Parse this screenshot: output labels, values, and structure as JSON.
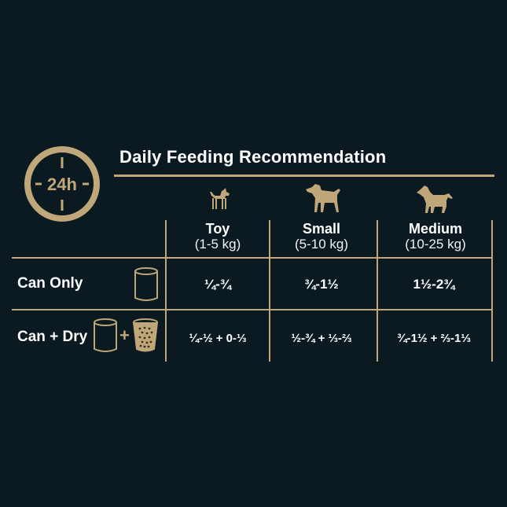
{
  "header": {
    "clock_text": "24h",
    "title": "Daily Feeding Recommendation"
  },
  "columns": [
    {
      "name": "Toy",
      "range": "(1-5 kg)",
      "icon": "toy-dog-icon"
    },
    {
      "name": "Small",
      "range": "(5-10 kg)",
      "icon": "small-dog-icon"
    },
    {
      "name": "Medium",
      "range": "(10-25 kg)",
      "icon": "medium-dog-icon"
    }
  ],
  "rows": [
    {
      "label": "Can Only",
      "icons": [
        "can-icon"
      ],
      "values": [
        "¼-¾",
        "¾-1½",
        "1½-2¾"
      ]
    },
    {
      "label": "Can + Dry",
      "icons": [
        "can-icon",
        "plus-icon",
        "dry-food-cup-icon"
      ],
      "plus": "+",
      "values": [
        "¼-½ + 0-⅓",
        "½-¾ + ⅓-⅔",
        "¾-1½ + ⅔-1⅓"
      ]
    }
  ],
  "colors": {
    "background": "#0b1a20",
    "accent": "#c0a77a",
    "text": "#ffffff"
  }
}
